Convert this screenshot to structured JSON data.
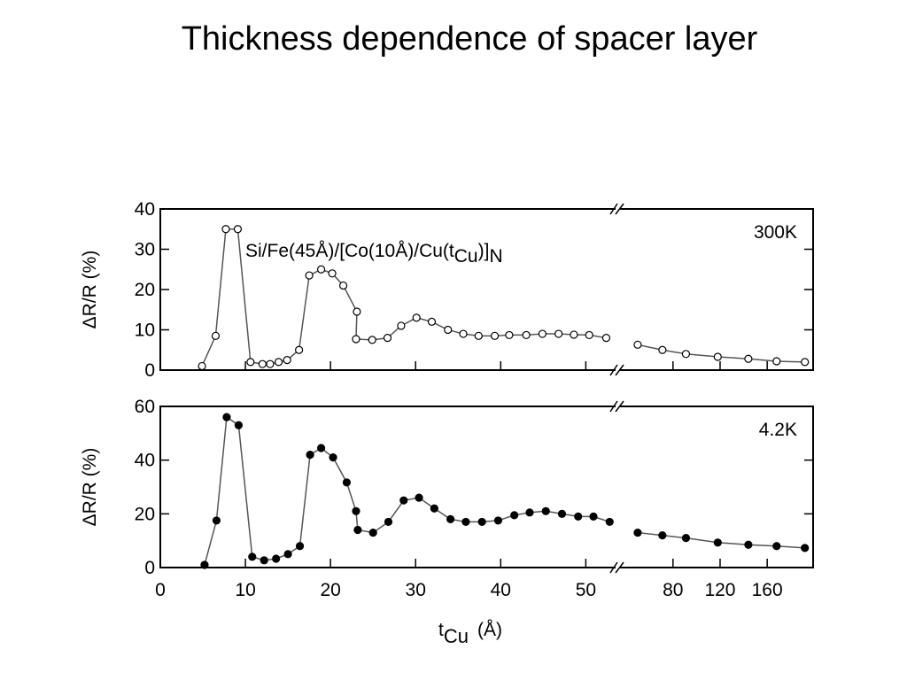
{
  "title": "Thickness dependence of spacer layer",
  "chart_data": [
    {
      "type": "line",
      "ylabel": "ΔR/R (%)",
      "label": "300K",
      "marker": "open",
      "annotation": {
        "text": "Si/Fe(45Å)/[Co(10Å)/Cu(t",
        "sub": "Cu",
        "close": ")]",
        "sub2": "N"
      },
      "ylim": [
        0,
        40
      ],
      "yticks": [
        0,
        10,
        20,
        30,
        40
      ],
      "series": [
        {
          "x": [
            4.9,
            6.5,
            7.7,
            9.1,
            10.6,
            12,
            12.9,
            13.9,
            14.9,
            16.3,
            17.5,
            18.9,
            20.2,
            21.5,
            23.1,
            23,
            24.9,
            26.7,
            28.3,
            30.1,
            31.9,
            33.8,
            35.6,
            37.4,
            39.3,
            41,
            43,
            44.9,
            46.8,
            48.6,
            50.4,
            52.4
          ],
          "values": [
            1,
            8.5,
            35,
            35,
            2,
            1.5,
            1.5,
            2,
            2.5,
            5,
            23.5,
            25,
            24,
            21,
            14.5,
            7.7,
            7.5,
            8,
            11,
            13,
            12,
            10,
            9,
            8.5,
            8.5,
            8.7,
            8.7,
            9,
            9,
            8.8,
            8.7,
            8
          ]
        },
        {
          "axis": "x2",
          "x": [
            50,
            71,
            91,
            118,
            144,
            168,
            192
          ],
          "values": [
            6.3,
            5,
            4,
            3.3,
            2.8,
            2.2,
            2
          ]
        }
      ]
    },
    {
      "type": "line",
      "ylabel": "ΔR/R (%)",
      "label": "4.2K",
      "marker": "filled",
      "ylim": [
        0,
        60
      ],
      "yticks": [
        0,
        20,
        40,
        60
      ],
      "xlim": [
        0,
        53.5
      ],
      "xticks": [
        0,
        10,
        20,
        30,
        40,
        50
      ],
      "x2lim": [
        35,
        199
      ],
      "x2ticks": [
        80,
        120,
        160
      ],
      "xlabel": {
        "main": "t",
        "sub": "Cu",
        "unit": "(Å)"
      },
      "series": [
        {
          "x": [
            5.2,
            6.6,
            7.8,
            9.2,
            10.8,
            12.2,
            13.6,
            15,
            16.4,
            17.6,
            18.9,
            20.3,
            21.9,
            23,
            23.2,
            25,
            26.8,
            28.6,
            30.4,
            32.2,
            34.1,
            35.9,
            37.8,
            39.7,
            41.6,
            43.4,
            45.3,
            47.2,
            49.1,
            50.9,
            52.8
          ],
          "values": [
            1,
            17.5,
            56,
            53,
            4,
            2.7,
            3.3,
            5,
            8,
            42,
            44.5,
            41,
            31.7,
            21,
            14,
            13,
            17,
            25,
            26,
            22,
            18,
            17,
            17,
            17.5,
            19.5,
            20.5,
            21,
            20,
            19,
            19,
            17
          ]
        },
        {
          "axis": "x2",
          "x": [
            50,
            71,
            91,
            118,
            144,
            168,
            192
          ],
          "values": [
            13,
            12,
            11,
            9.3,
            8.5,
            8,
            7.3
          ]
        }
      ]
    }
  ]
}
